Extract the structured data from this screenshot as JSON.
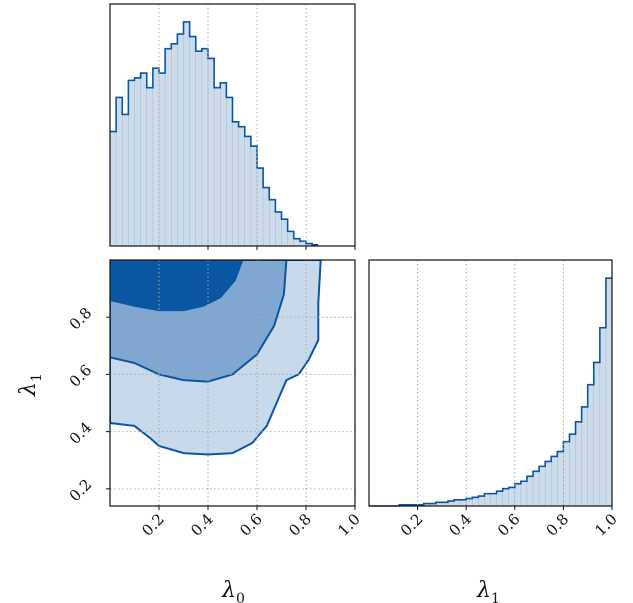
{
  "colors": {
    "fill": "#cddcea",
    "line": "#0b56a3",
    "level1": "#c7d9ea",
    "level2": "#7fa7d1",
    "level3": "#0b56a3",
    "grid": "#aaaaaa"
  },
  "chart_data": [
    {
      "panel": "marginal-lambda0",
      "type": "area",
      "grid": true,
      "xlim": [
        0.0,
        1.0
      ],
      "xticks": [
        0.2,
        0.4,
        0.6,
        0.8
      ],
      "bin_edges": [
        0.0,
        0.025,
        0.05,
        0.075,
        0.1,
        0.125,
        0.15,
        0.175,
        0.2,
        0.225,
        0.25,
        0.275,
        0.3,
        0.325,
        0.35,
        0.375,
        0.4,
        0.425,
        0.45,
        0.475,
        0.5,
        0.525,
        0.55,
        0.575,
        0.6,
        0.625,
        0.65,
        0.675,
        0.7,
        0.725,
        0.75,
        0.775,
        0.8,
        0.825,
        0.85
      ],
      "counts": [
        0.47,
        0.61,
        0.54,
        0.68,
        0.69,
        0.71,
        0.65,
        0.73,
        0.71,
        0.81,
        0.83,
        0.87,
        0.92,
        0.86,
        0.8,
        0.81,
        0.77,
        0.65,
        0.67,
        0.61,
        0.51,
        0.49,
        0.45,
        0.41,
        0.32,
        0.24,
        0.19,
        0.14,
        0.11,
        0.06,
        0.03,
        0.02,
        0.01,
        0.005
      ]
    },
    {
      "panel": "joint-lambda0-lambda1",
      "type": "area",
      "grid": true,
      "xlim": [
        0.0,
        1.0
      ],
      "ylim": [
        0.14,
        1.0
      ],
      "xticks": [
        0.2,
        0.4,
        0.6,
        0.8,
        1.0
      ],
      "yticks": [
        0.2,
        0.4,
        0.6,
        0.8
      ],
      "xlabel": "λ0",
      "ylabel": "λ1",
      "contours": [
        {
          "level": 1,
          "points": [
            [
              0.0,
              0.43
            ],
            [
              0.1,
              0.42
            ],
            [
              0.16,
              0.38
            ],
            [
              0.2,
              0.35
            ],
            [
              0.3,
              0.325
            ],
            [
              0.4,
              0.32
            ],
            [
              0.5,
              0.325
            ],
            [
              0.58,
              0.36
            ],
            [
              0.64,
              0.42
            ],
            [
              0.68,
              0.5
            ],
            [
              0.72,
              0.58
            ],
            [
              0.77,
              0.6
            ],
            [
              0.81,
              0.65
            ],
            [
              0.85,
              0.72
            ],
            [
              0.85,
              0.85
            ],
            [
              0.86,
              1.0
            ],
            [
              0.0,
              1.0
            ]
          ]
        },
        {
          "level": 2,
          "points": [
            [
              0.0,
              0.66
            ],
            [
              0.1,
              0.64
            ],
            [
              0.2,
              0.6
            ],
            [
              0.3,
              0.58
            ],
            [
              0.4,
              0.575
            ],
            [
              0.5,
              0.6
            ],
            [
              0.6,
              0.67
            ],
            [
              0.67,
              0.77
            ],
            [
              0.71,
              0.88
            ],
            [
              0.72,
              1.0
            ],
            [
              0.0,
              1.0
            ]
          ]
        },
        {
          "level": 3,
          "points": [
            [
              0.0,
              0.86
            ],
            [
              0.1,
              0.84
            ],
            [
              0.2,
              0.825
            ],
            [
              0.3,
              0.825
            ],
            [
              0.38,
              0.84
            ],
            [
              0.45,
              0.87
            ],
            [
              0.51,
              0.93
            ],
            [
              0.54,
              1.0
            ],
            [
              0.0,
              1.0
            ]
          ]
        }
      ]
    },
    {
      "panel": "marginal-lambda1",
      "type": "area",
      "grid": true,
      "xlim": [
        0.0,
        1.0
      ],
      "xticks": [
        0.2,
        0.4,
        0.6,
        0.8,
        1.0
      ],
      "xlabel": "λ1",
      "bin_edges": [
        0.0,
        0.025,
        0.05,
        0.075,
        0.1,
        0.125,
        0.15,
        0.175,
        0.2,
        0.225,
        0.25,
        0.275,
        0.3,
        0.325,
        0.35,
        0.375,
        0.4,
        0.425,
        0.45,
        0.475,
        0.5,
        0.525,
        0.55,
        0.575,
        0.6,
        0.625,
        0.65,
        0.675,
        0.7,
        0.725,
        0.75,
        0.775,
        0.8,
        0.825,
        0.85,
        0.875,
        0.9,
        0.925,
        0.95,
        0.975,
        1.0
      ],
      "counts": [
        0,
        0,
        0,
        0,
        0,
        0.005,
        0.005,
        0.005,
        0.005,
        0.01,
        0.01,
        0.015,
        0.015,
        0.02,
        0.025,
        0.025,
        0.03,
        0.035,
        0.04,
        0.05,
        0.05,
        0.06,
        0.07,
        0.075,
        0.09,
        0.1,
        0.12,
        0.14,
        0.16,
        0.18,
        0.2,
        0.22,
        0.26,
        0.29,
        0.34,
        0.4,
        0.49,
        0.58,
        0.72,
        0.92
      ]
    }
  ]
}
